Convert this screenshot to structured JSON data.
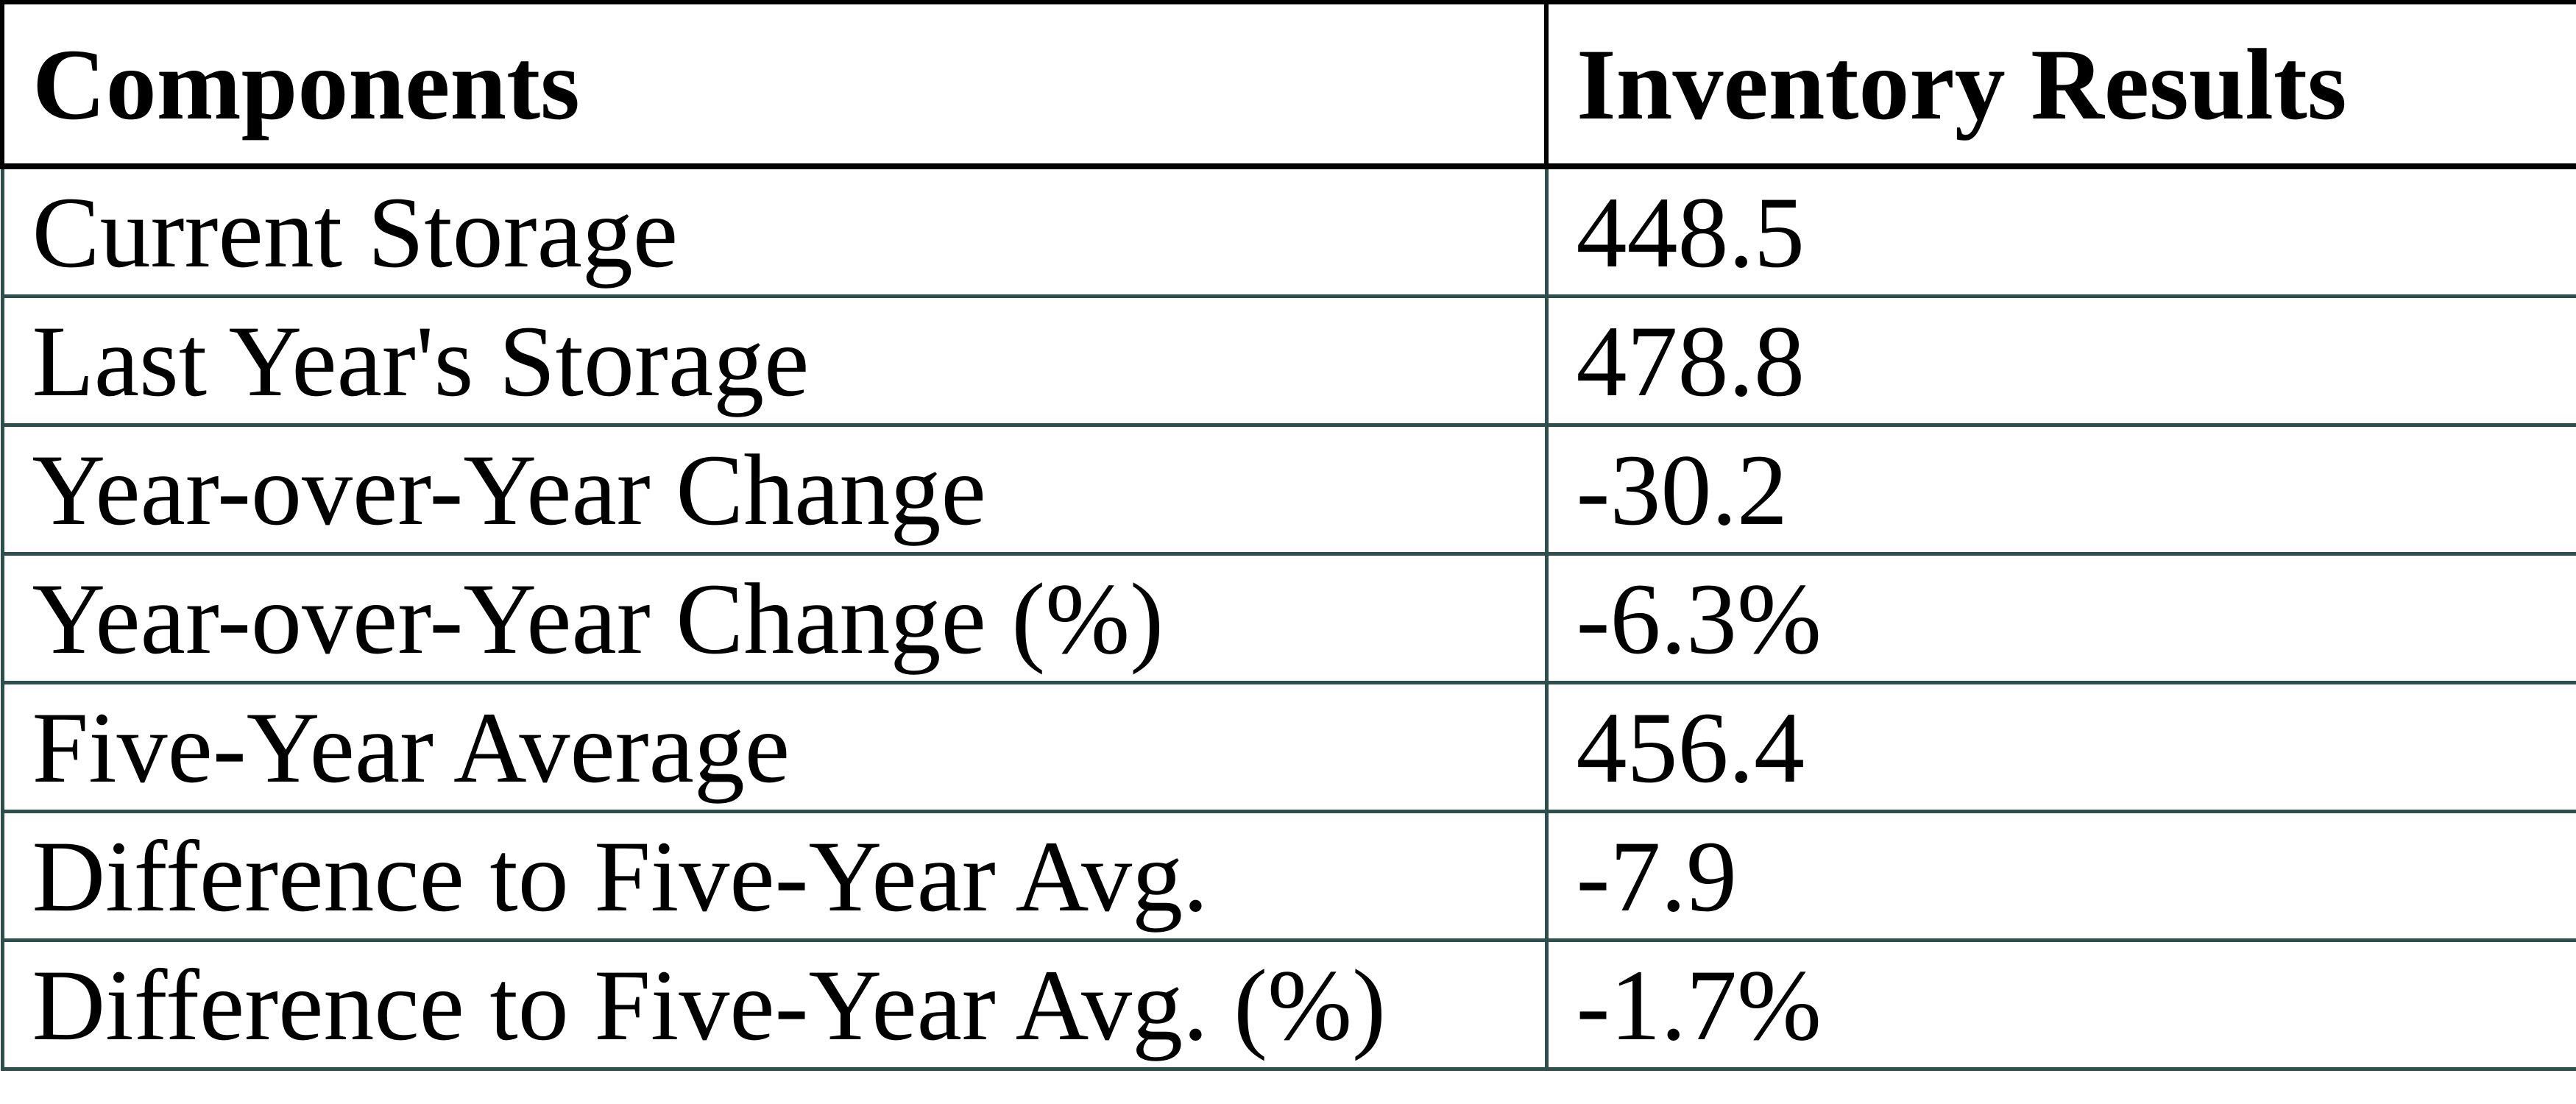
{
  "table": {
    "headers": [
      "Components",
      "Inventory Results"
    ],
    "rows": [
      {
        "component": "Current Storage",
        "result": "448.5"
      },
      {
        "component": "Last Year's Storage",
        "result": "478.8"
      },
      {
        "component": "Year-over-Year Change",
        "result": "-30.2"
      },
      {
        "component": "Year-over-Year Change (%)",
        "result": "-6.3%"
      },
      {
        "component": "Five-Year Average",
        "result": "456.4"
      },
      {
        "component": "Difference to Five-Year Avg.",
        "result": "-7.9"
      },
      {
        "component": "Difference to Five-Year Avg. (%)",
        "result": "-1.7%"
      }
    ]
  },
  "colors": {
    "header_border": "#000000",
    "body_border": "#2F4F4F",
    "text": "#000000",
    "background": "#FFFFFF"
  },
  "chart_data": {
    "type": "table",
    "title": "",
    "columns": [
      "Components",
      "Inventory Results"
    ],
    "rows": [
      [
        "Current Storage",
        448.5
      ],
      [
        "Last Year's Storage",
        478.8
      ],
      [
        "Year-over-Year Change",
        -30.2
      ],
      [
        "Year-over-Year Change (%)",
        "-6.3%"
      ],
      [
        "Five-Year Average",
        456.4
      ],
      [
        "Difference to Five-Year Avg.",
        -7.9
      ],
      [
        "Difference to Five-Year Avg. (%)",
        "-1.7%"
      ]
    ]
  }
}
